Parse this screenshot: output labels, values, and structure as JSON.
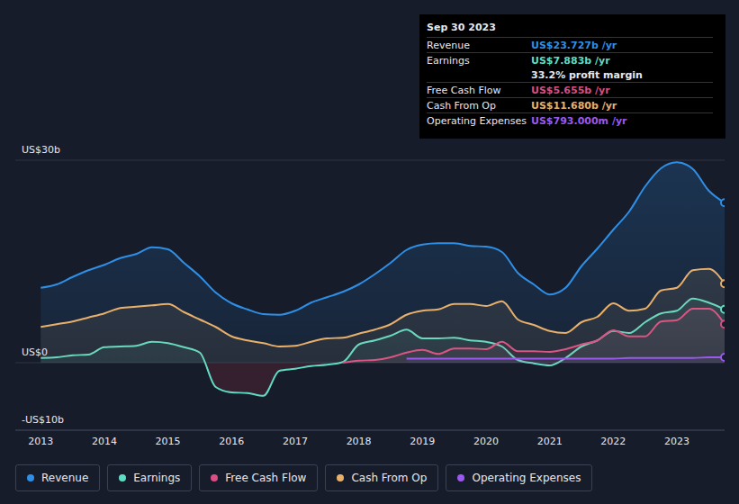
{
  "chart_data": {
    "type": "area",
    "title": "",
    "x": [
      2013,
      2013.25,
      2013.5,
      2013.75,
      2014,
      2014.25,
      2014.5,
      2014.75,
      2015,
      2015.25,
      2015.5,
      2015.75,
      2016,
      2016.25,
      2016.5,
      2016.75,
      2017,
      2017.25,
      2017.5,
      2017.75,
      2018,
      2018.25,
      2018.5,
      2018.75,
      2019,
      2019.25,
      2019.5,
      2019.75,
      2020,
      2020.25,
      2020.5,
      2020.75,
      2021,
      2021.25,
      2021.5,
      2021.75,
      2022,
      2022.25,
      2022.5,
      2022.75,
      2023,
      2023.25,
      2023.5,
      2023.75
    ],
    "series": [
      {
        "name": "Revenue",
        "color": "#2f8fe6",
        "values": [
          11.1,
          11.6,
          12.7,
          13.7,
          14.5,
          15.5,
          16.1,
          17.1,
          16.8,
          14.8,
          12.8,
          10.4,
          8.8,
          7.9,
          7.2,
          7.1,
          7.7,
          8.9,
          9.7,
          10.5,
          11.6,
          13.1,
          14.8,
          16.7,
          17.5,
          17.7,
          17.7,
          17.3,
          17.2,
          16.4,
          13.3,
          11.6,
          10.1,
          11.1,
          14.3,
          16.9,
          19.7,
          22.4,
          26.1,
          28.8,
          29.7,
          28.7,
          25.5,
          23.7
        ]
      },
      {
        "name": "Earnings",
        "color": "#5fdcc4",
        "values": [
          0.7,
          0.8,
          1.1,
          1.2,
          2.3,
          2.4,
          2.5,
          3.1,
          2.9,
          2.3,
          1.5,
          -3.6,
          -4.4,
          -4.5,
          -4.9,
          -1.2,
          -0.9,
          -0.5,
          -0.3,
          0.1,
          2.7,
          3.3,
          4.0,
          4.9,
          3.6,
          3.6,
          3.7,
          3.3,
          3.1,
          2.4,
          0.4,
          -0.1,
          -0.4,
          0.7,
          2.4,
          3.3,
          4.7,
          4.4,
          6.0,
          7.3,
          7.7,
          9.5,
          8.9,
          7.9
        ]
      },
      {
        "name": "Free Cash Flow",
        "color": "#d94e84",
        "values": [
          null,
          null,
          null,
          null,
          null,
          null,
          null,
          null,
          null,
          null,
          null,
          null,
          null,
          null,
          null,
          null,
          null,
          null,
          null,
          0,
          0.3,
          0.4,
          0.8,
          1.5,
          1.9,
          1.3,
          2.1,
          2.1,
          2.0,
          3.1,
          1.7,
          1.7,
          1.6,
          2.0,
          2.7,
          3.3,
          4.8,
          3.9,
          3.9,
          6.1,
          6.3,
          8.0,
          8.0,
          5.7
        ]
      },
      {
        "name": "Cash From Op",
        "color": "#e8b06b",
        "values": [
          5.3,
          5.7,
          6.1,
          6.7,
          7.3,
          8.1,
          8.3,
          8.5,
          8.7,
          7.5,
          6.4,
          5.3,
          3.9,
          3.3,
          2.9,
          2.4,
          2.5,
          3.1,
          3.6,
          3.7,
          4.3,
          4.9,
          5.7,
          7.1,
          7.7,
          7.9,
          8.7,
          8.7,
          8.4,
          9.1,
          6.4,
          5.6,
          4.7,
          4.4,
          6.0,
          6.8,
          8.8,
          7.7,
          8.0,
          10.7,
          11.1,
          13.7,
          13.9,
          11.7
        ]
      },
      {
        "name": "Operating Expenses",
        "color": "#9b59f0",
        "values": [
          null,
          null,
          null,
          null,
          null,
          null,
          null,
          null,
          null,
          null,
          null,
          null,
          null,
          null,
          null,
          null,
          null,
          null,
          null,
          null,
          null,
          null,
          null,
          0.6,
          0.6,
          0.6,
          0.6,
          0.6,
          0.6,
          0.6,
          0.6,
          0.6,
          0.6,
          0.6,
          0.6,
          0.6,
          0.6,
          0.7,
          0.7,
          0.7,
          0.7,
          0.7,
          0.8,
          0.8
        ]
      }
    ],
    "xlim": [
      2012.6,
      2023.75
    ],
    "xticks": [
      2013,
      2014,
      2015,
      2016,
      2017,
      2018,
      2019,
      2020,
      2021,
      2022,
      2023
    ],
    "ylim": [
      -10,
      30
    ],
    "yticks": [
      {
        "value": -10,
        "label": "-US$10b"
      },
      {
        "value": 0,
        "label": "US$0"
      },
      {
        "value": 30,
        "label": "US$30b"
      }
    ],
    "grid": true,
    "legend": "bottom",
    "tooltip": {
      "date": "Sep 30 2023",
      "rows": [
        {
          "label": "Revenue",
          "value": "US$23.727b /yr",
          "color": "#2f8fe6"
        },
        {
          "label": "Earnings",
          "value": "US$7.883b /yr",
          "color": "#5fdcc4",
          "note": "33.2% profit margin"
        },
        {
          "label": "Free Cash Flow",
          "value": "US$5.655b /yr",
          "color": "#d94e84"
        },
        {
          "label": "Cash From Op",
          "value": "US$11.680b /yr",
          "color": "#e8b06b"
        },
        {
          "label": "Operating Expenses",
          "value": "US$793.000m /yr",
          "color": "#9b59f0"
        }
      ]
    }
  }
}
